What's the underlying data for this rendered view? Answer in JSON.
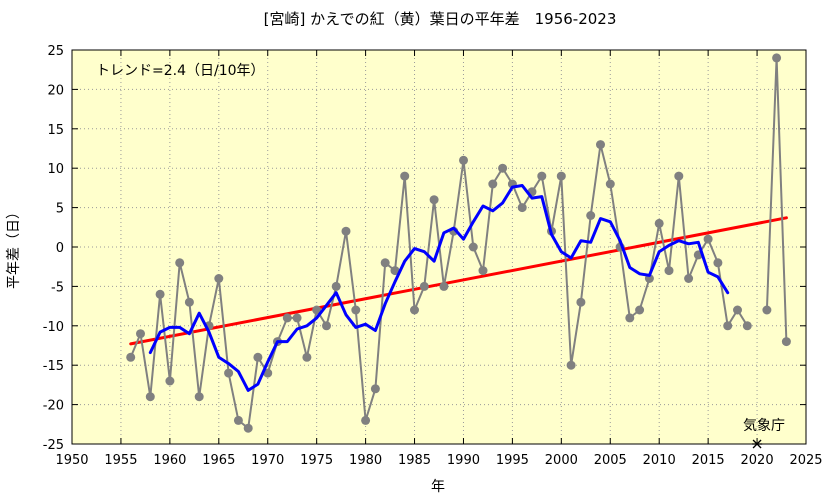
{
  "chart_data": {
    "type": "line",
    "title": "[宮崎] かえでの紅（黄）葉日の平年差　1956-2023",
    "xlabel": "年",
    "ylabel": "平年差（日）",
    "xlim": [
      1950,
      2025
    ],
    "ylim": [
      -25,
      25
    ],
    "xticks": [
      "1950",
      "1955",
      "1960",
      "1965",
      "1970",
      "1975",
      "1980",
      "1985",
      "1990",
      "1995",
      "2000",
      "2005",
      "2010",
      "2015",
      "2020",
      "2025"
    ],
    "yticks": [
      "25",
      "20",
      "15",
      "10",
      "5",
      "0",
      "-5",
      "-10",
      "-15",
      "-20",
      "-25"
    ],
    "annotation": "トレンド=2.4（日/10年）",
    "source_label": "気象庁",
    "source_marker_x": 2020,
    "background_color": "#ffffcc",
    "grid": true,
    "series": [
      {
        "kind": "observed",
        "color": "#808080",
        "x": [
          1956,
          1957,
          1958,
          1959,
          1960,
          1961,
          1962,
          1963,
          1964,
          1965,
          1966,
          1967,
          1968,
          1969,
          1970,
          1971,
          1972,
          1973,
          1974,
          1975,
          1976,
          1977,
          1978,
          1979,
          1980,
          1981,
          1982,
          1983,
          1984,
          1985,
          1986,
          1987,
          1988,
          1989,
          1990,
          1991,
          1992,
          1993,
          1994,
          1995,
          1996,
          1997,
          1998,
          1999,
          2000,
          2001,
          2002,
          2003,
          2004,
          2005,
          2006,
          2007,
          2008,
          2009,
          2010,
          2011,
          2012,
          2013,
          2014,
          2015,
          2016,
          2017,
          2018,
          2019,
          2020,
          2021,
          2022,
          2023
        ],
        "y": [
          -14,
          -11,
          -19,
          -6,
          -17,
          -2,
          -7,
          -19,
          -10,
          -4,
          -16,
          -22,
          -23,
          -14,
          -16,
          -12,
          -9,
          -9,
          -14,
          -8,
          -10,
          -5,
          2,
          -8,
          -22,
          -18,
          -2,
          -3,
          9,
          -8,
          -5,
          6,
          -5,
          2,
          11,
          0,
          -3,
          8,
          10,
          8,
          5,
          7,
          9,
          2,
          9,
          -15,
          -7,
          4,
          13,
          8,
          0,
          -9,
          -8,
          -4,
          3,
          -3,
          9,
          -4,
          -1,
          1,
          -2,
          -10,
          -8,
          -10,
          null,
          -8,
          24,
          -12
        ]
      },
      {
        "kind": "moving-average",
        "color": "#0000ff",
        "x": [
          1958,
          1959,
          1960,
          1961,
          1962,
          1963,
          1964,
          1965,
          1966,
          1967,
          1968,
          1969,
          1970,
          1971,
          1972,
          1973,
          1974,
          1975,
          1976,
          1977,
          1978,
          1979,
          1980,
          1981,
          1982,
          1983,
          1984,
          1985,
          1986,
          1987,
          1988,
          1989,
          1990,
          1991,
          1992,
          1993,
          1994,
          1995,
          1996,
          1997,
          1998,
          1999,
          2000,
          2001,
          2002,
          2003,
          2004,
          2005,
          2006,
          2007,
          2008,
          2009,
          2010,
          2011,
          2012,
          2013,
          2014,
          2015,
          2016,
          2017
        ],
        "y": [
          -13.4,
          -10.8,
          -10.2,
          -10.2,
          -11,
          -8.4,
          -10.8,
          -14,
          -14.8,
          -15.8,
          -18.2,
          -17.4,
          -14.6,
          -12,
          -12,
          -10.4,
          -10,
          -9,
          -7.4,
          -5.8,
          -8.6,
          -10.2,
          -9.8,
          -10.6,
          -7.2,
          -4.4,
          -1.8,
          -0.2,
          -0.6,
          -1.8,
          1.8,
          2.4,
          1,
          3.2,
          5.2,
          4.6,
          5.6,
          7.6,
          7.8,
          6.2,
          6.4,
          1.6,
          -0.6,
          -1.4,
          0.8,
          0.6,
          3.6,
          3.2,
          0.8,
          -2.6,
          -3.4,
          -3.6,
          -0.6,
          0.2,
          0.8,
          0.4,
          0.6,
          -3.2,
          -3.8,
          -5.8
        ]
      },
      {
        "kind": "trend",
        "color": "#ff0000",
        "x": [
          1956,
          2023
        ],
        "y": [
          -12.3,
          3.7
        ]
      }
    ]
  }
}
